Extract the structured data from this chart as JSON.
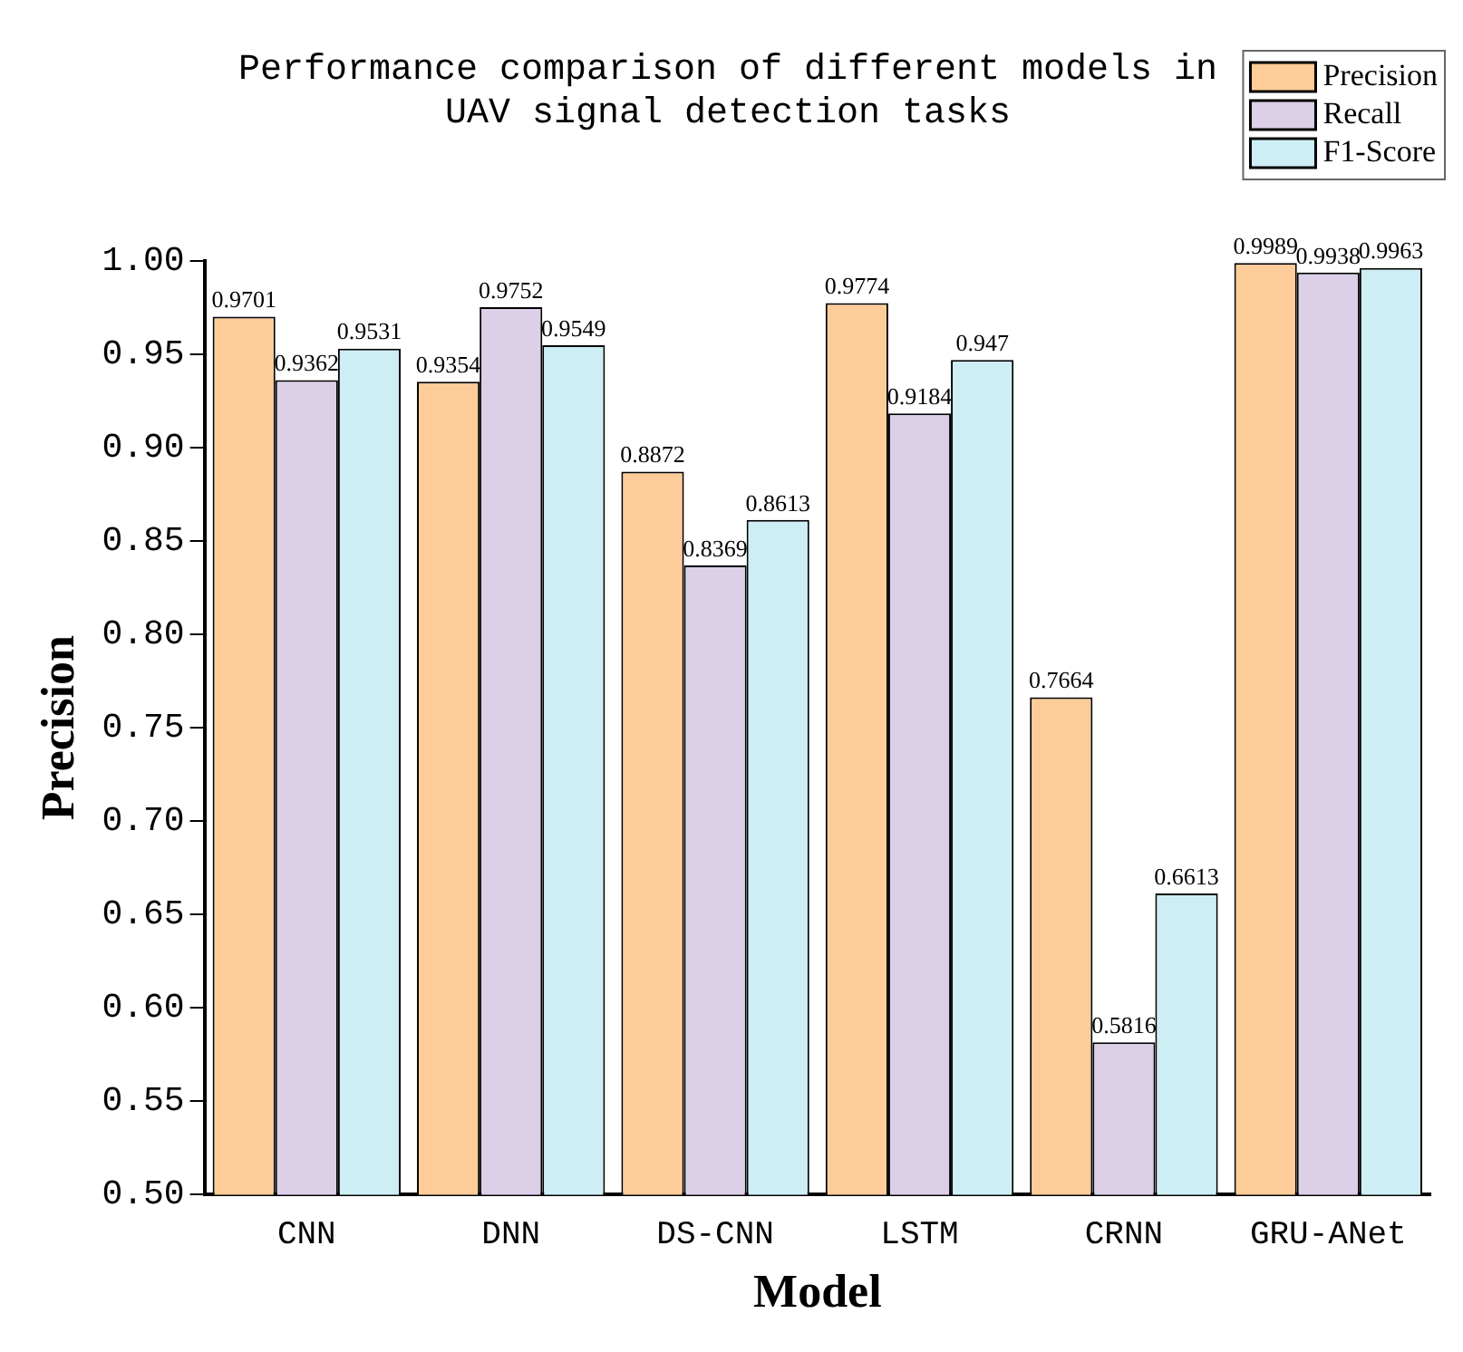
{
  "chart_data": {
    "type": "bar",
    "title": "Performance comparison of different models in UAV signal detection tasks",
    "xlabel": "Model",
    "ylabel": "Precision",
    "categories": [
      "CNN",
      "DNN",
      "DS-CNN",
      "LSTM",
      "CRNN",
      "GRU-ANet"
    ],
    "series": [
      {
        "name": "Precision",
        "color": "#fdcc99",
        "values": [
          0.9701,
          0.9354,
          0.8872,
          0.9774,
          0.7664,
          0.9989
        ]
      },
      {
        "name": "Recall",
        "color": "#dccfe8",
        "values": [
          0.9362,
          0.9752,
          0.8369,
          0.9184,
          0.5816,
          0.9938
        ]
      },
      {
        "name": "F1-Score",
        "color": "#cdeef5",
        "values": [
          0.9531,
          0.9549,
          0.8613,
          0.947,
          0.6613,
          0.9963
        ]
      }
    ],
    "ylim": [
      0.5,
      1.0
    ],
    "yticks": [
      {
        "value": 0.5,
        "label": "0.50"
      },
      0.55,
      {
        "value": 0.6,
        "label": "0.60"
      },
      0.65,
      {
        "value": 0.7,
        "label": "0.70"
      },
      0.75,
      {
        "value": 0.8,
        "label": "0.80"
      },
      0.85,
      {
        "value": 0.9,
        "label": "0.90"
      },
      0.95,
      {
        "value": 1.0,
        "label": "1.00"
      }
    ],
    "grid": false,
    "legend": "top right",
    "data_labels": true
  }
}
